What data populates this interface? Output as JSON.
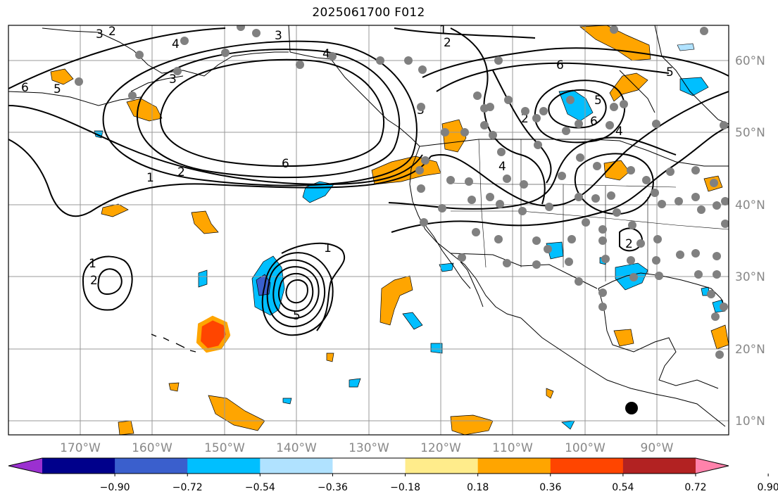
{
  "title": "2025061700 F012",
  "lat_labels": [
    "60°N",
    "50°N",
    "40°N",
    "30°N",
    "20°N",
    "10°N"
  ],
  "lon_labels": [
    "170°W",
    "160°W",
    "150°W",
    "140°W",
    "130°W",
    "120°W",
    "110°W",
    "100°W",
    "90°W"
  ],
  "colorbar": {
    "tick_labels": [
      "−0.90",
      "−0.72",
      "−0.54",
      "−0.36",
      "−0.18",
      "0.18",
      "0.36",
      "0.54",
      "0.72",
      "0.90"
    ],
    "colors": [
      "#9b30d0",
      "#00008b",
      "#3a5fcd",
      "#00bfff",
      "#b0e2ff",
      "#ffffff",
      "#ffec8b",
      "#ffa500",
      "#ff4500",
      "#b22222",
      "#ff82ab"
    ]
  },
  "contour_labels": [
    "3",
    "2",
    "1",
    "2",
    "3",
    "4",
    "6",
    "5",
    "4",
    "5",
    "6",
    "3",
    "4",
    "6",
    "5",
    "4",
    "2",
    "1",
    "2",
    "6",
    "1",
    "2",
    "3",
    "5",
    "2",
    "1"
  ],
  "colors": {
    "negative": "#00bfff",
    "negative_strong": "#3a5fcd",
    "positive": "#ffa500",
    "positive_strong": "#ff4500",
    "station": "#808080",
    "grid": "#999999"
  }
}
